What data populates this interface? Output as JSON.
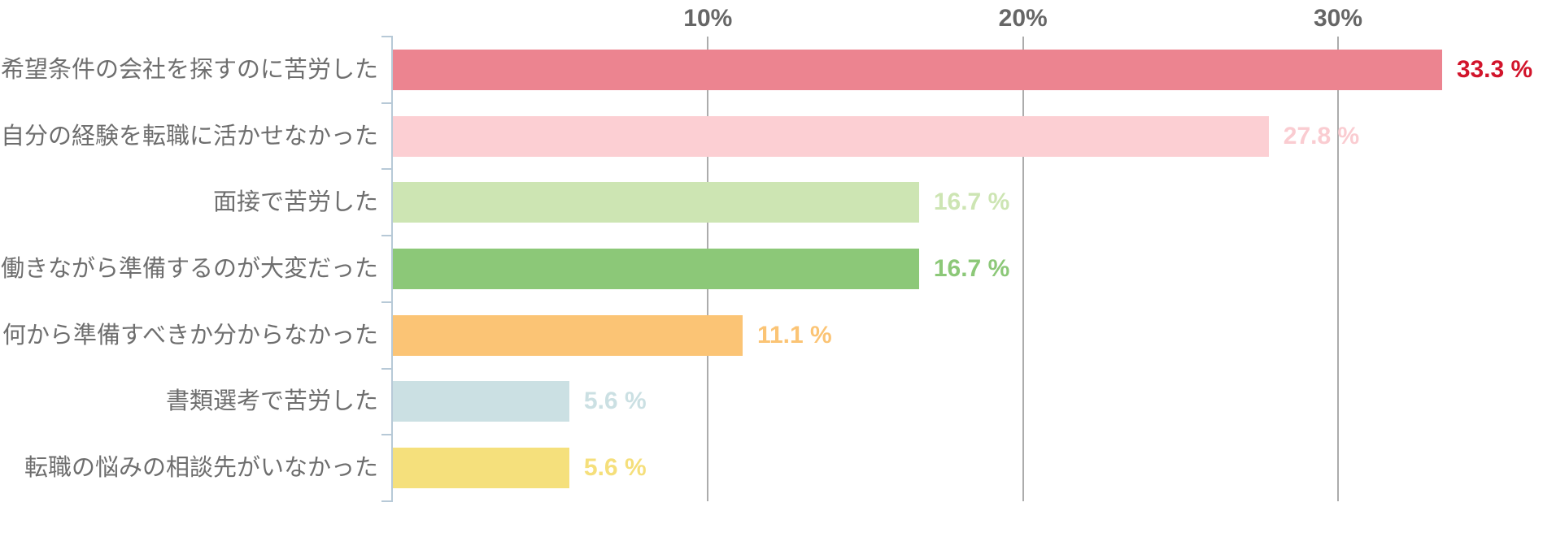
{
  "chart_data": {
    "type": "bar",
    "orientation": "horizontal",
    "title": "",
    "categories": [
      "希望条件の会社を探すのに苦労した",
      "自分の経験を転職に活かせなかった",
      "面接で苦労した",
      "働きながら準備するのが大変だった",
      "何から準備すべきか分からなかった",
      "書類選考で苦労した",
      "転職の悩みの相談先がいなかった"
    ],
    "values": [
      33.3,
      27.8,
      16.7,
      16.7,
      11.1,
      5.6,
      5.6
    ],
    "value_labels": [
      "33.3 %",
      "27.8 %",
      "16.7 %",
      "16.7 %",
      "11.1 %",
      "5.6 %",
      "5.6 %"
    ],
    "bar_colors": [
      "#EC8490",
      "#FCCFD3",
      "#CDE5B3",
      "#8CC878",
      "#FBC475",
      "#CBE0E3",
      "#F5E07C"
    ],
    "value_label_colors": [
      "#D2142B",
      "#FACCD1",
      "#CDE5B3",
      "#8CC878",
      "#FBC475",
      "#CBE0E3",
      "#F5DF7B"
    ],
    "x_ticks": [
      {
        "value": 10,
        "label": "10%"
      },
      {
        "value": 20,
        "label": "20%"
      },
      {
        "value": 30,
        "label": "30%"
      }
    ],
    "xlim": [
      0,
      36.5
    ],
    "grid": true,
    "legend": false,
    "colors": {
      "axis": "#B7C9D7",
      "gridline": "#ACACAC",
      "tick_label": "#666666",
      "category_label": "#6E6E6E",
      "background": "#FFFFFF"
    }
  }
}
